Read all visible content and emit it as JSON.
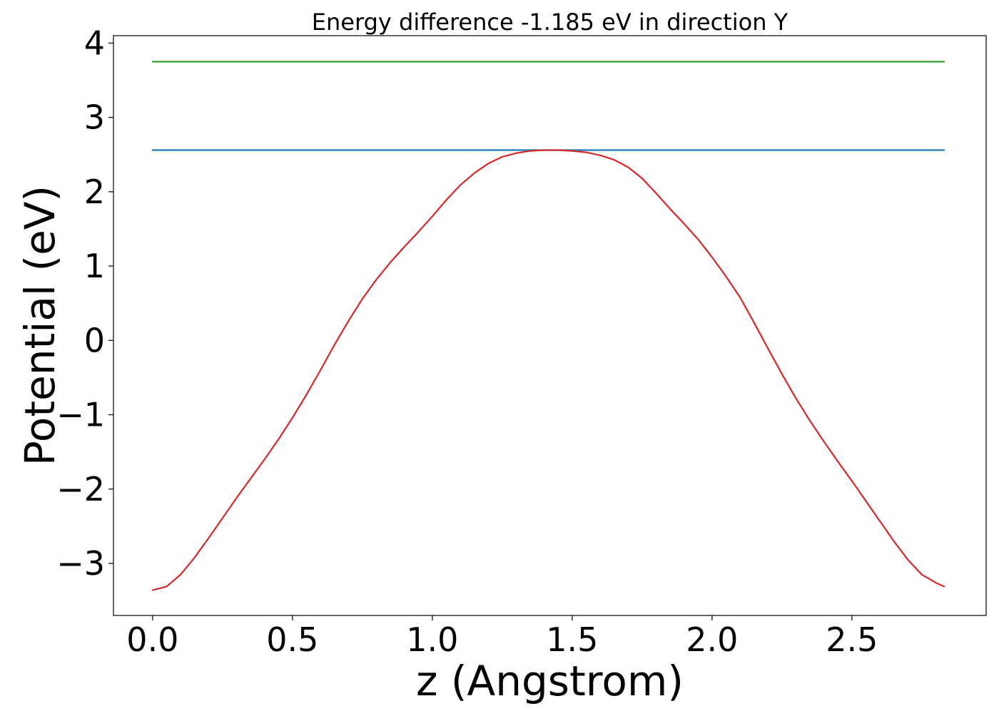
{
  "chart_data": {
    "type": "line",
    "title": "Energy difference -1.185 eV in direction Y",
    "xlabel": "z (Angstrom)",
    "ylabel": "Potential (eV)",
    "xlim": [
      -0.14,
      2.98
    ],
    "ylim": [
      -3.7,
      4.1
    ],
    "xticks": [
      0.0,
      0.5,
      1.0,
      1.5,
      2.0,
      2.5
    ],
    "xtick_labels": [
      "0.0",
      "0.5",
      "1.0",
      "1.5",
      "2.0",
      "2.5"
    ],
    "yticks": [
      -3,
      -2,
      -1,
      0,
      1,
      2,
      3,
      4
    ],
    "ytick_labels": [
      "−3",
      "−2",
      "−1",
      "0",
      "1",
      "2",
      "3",
      "4"
    ],
    "grid": false,
    "series": [
      {
        "color": "#2ca02c",
        "x": [
          0.0,
          2.83
        ],
        "y": [
          3.75,
          3.75
        ]
      },
      {
        "color": "#1f77b4",
        "x": [
          0.0,
          2.83
        ],
        "y": [
          2.56,
          2.56
        ]
      },
      {
        "color": "#d62728",
        "x": [
          0.0,
          0.05,
          0.1,
          0.15,
          0.2,
          0.25,
          0.3,
          0.35,
          0.4,
          0.45,
          0.5,
          0.55,
          0.6,
          0.65,
          0.7,
          0.75,
          0.8,
          0.85,
          0.9,
          0.95,
          1.0,
          1.05,
          1.1,
          1.15,
          1.2,
          1.25,
          1.3,
          1.35,
          1.4,
          1.45,
          1.5,
          1.55,
          1.6,
          1.65,
          1.7,
          1.75,
          1.8,
          1.85,
          1.9,
          1.95,
          2.0,
          2.05,
          2.1,
          2.15,
          2.2,
          2.25,
          2.3,
          2.35,
          2.4,
          2.45,
          2.5,
          2.55,
          2.6,
          2.65,
          2.7,
          2.75,
          2.8,
          2.83
        ],
        "y": [
          -3.36,
          -3.31,
          -3.15,
          -2.92,
          -2.66,
          -2.39,
          -2.12,
          -1.86,
          -1.6,
          -1.33,
          -1.04,
          -0.73,
          -0.4,
          -0.06,
          0.26,
          0.56,
          0.82,
          1.05,
          1.26,
          1.46,
          1.67,
          1.89,
          2.09,
          2.25,
          2.38,
          2.47,
          2.52,
          2.55,
          2.56,
          2.56,
          2.55,
          2.53,
          2.49,
          2.43,
          2.33,
          2.18,
          1.98,
          1.77,
          1.57,
          1.36,
          1.12,
          0.86,
          0.58,
          0.24,
          -0.11,
          -0.45,
          -0.78,
          -1.08,
          -1.36,
          -1.63,
          -1.89,
          -2.16,
          -2.43,
          -2.7,
          -2.95,
          -3.15,
          -3.26,
          -3.31
        ]
      }
    ]
  }
}
